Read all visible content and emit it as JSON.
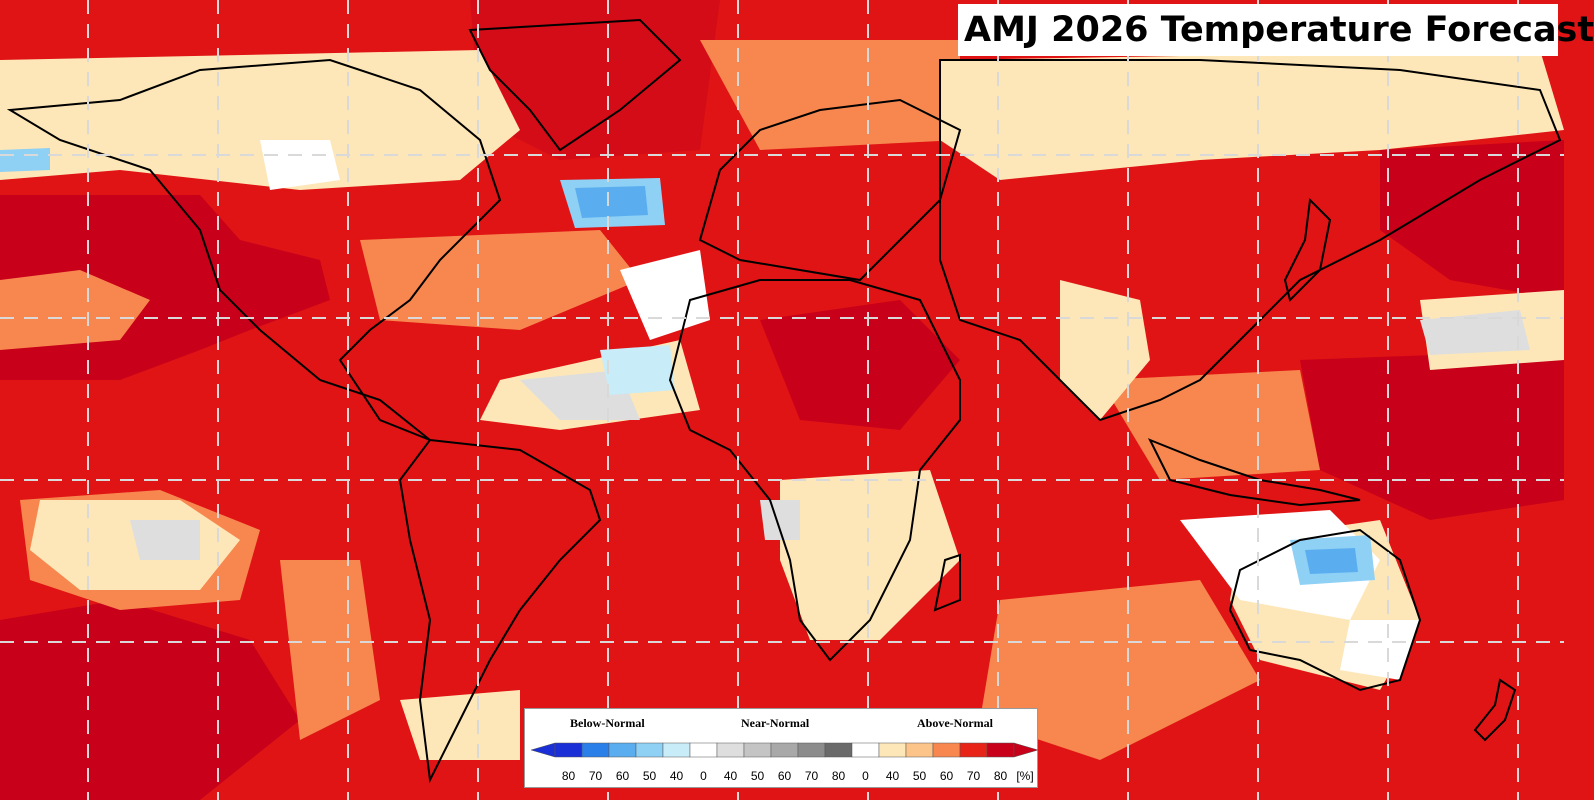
{
  "title": "AMJ 2026 Temperature Forecast",
  "legend": {
    "categories": {
      "below": "Below-Normal",
      "near": "Near-Normal",
      "above": "Above-Normal"
    },
    "ticks": [
      "80",
      "70",
      "60",
      "50",
      "40",
      "0",
      "40",
      "50",
      "60",
      "70",
      "80",
      "0",
      "40",
      "50",
      "60",
      "70",
      "80"
    ],
    "unit": "[%]",
    "colors": {
      "below": [
        "#1a2fd6",
        "#2a7fe8",
        "#5aaef0",
        "#8fd0f5",
        "#c8ecf8"
      ],
      "near": [
        "#ffffff",
        "#dedede",
        "#c4c4c4",
        "#a8a8a8",
        "#8c8c8c",
        "#6a6a6a"
      ],
      "above": [
        "#ffffff",
        "#fde7b8",
        "#fcc488",
        "#f7874f",
        "#e82418",
        "#c8001a"
      ]
    }
  },
  "map": {
    "ocean_base": "#e01414",
    "coast_color": "#000000",
    "grid_color": "#d9d9d9"
  }
}
